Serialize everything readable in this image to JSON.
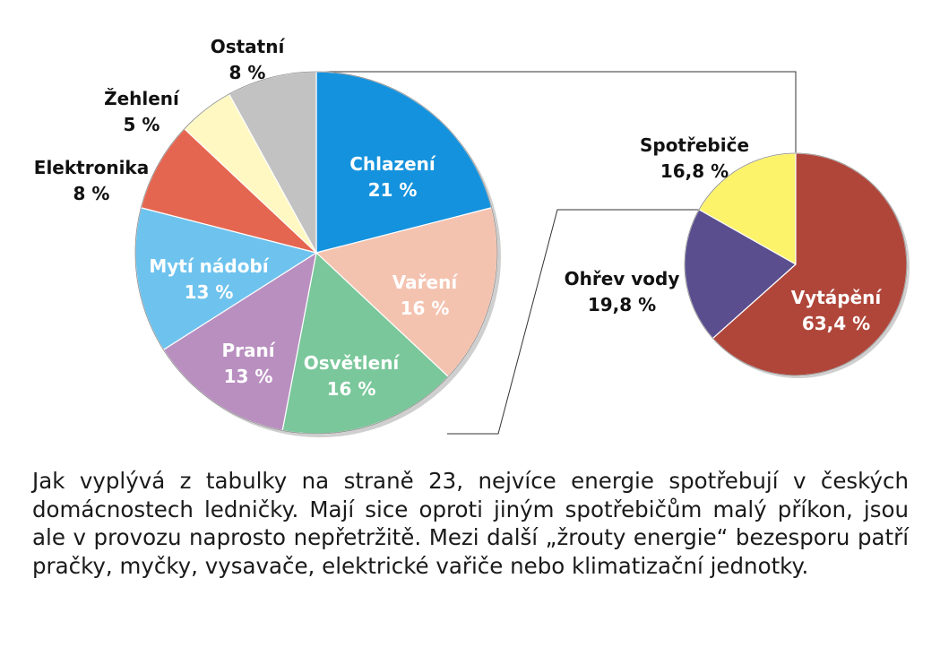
{
  "chart_data": [
    {
      "type": "pie",
      "slices": [
        {
          "label": "Chlazení",
          "value": 21,
          "value_label": "21 %",
          "color": "#1592dd",
          "label_inside": true
        },
        {
          "label": "Vaření",
          "value": 16,
          "value_label": "16 %",
          "color": "#f4c3b0",
          "label_inside": true
        },
        {
          "label": "Osvětlení",
          "value": 16,
          "value_label": "16 %",
          "color": "#79c79a",
          "label_inside": true
        },
        {
          "label": "Praní",
          "value": 13,
          "value_label": "13 %",
          "color": "#b98fc0",
          "label_inside": true
        },
        {
          "label": "Mytí nádobí",
          "value": 13,
          "value_label": "13 %",
          "color": "#6ec3ee",
          "label_inside": true
        },
        {
          "label": "Elektronika",
          "value": 8,
          "value_label": "8 %",
          "color": "#e56650",
          "label_inside": false
        },
        {
          "label": "Žehlení",
          "value": 5,
          "value_label": "5 %",
          "color": "#fff8c2",
          "label_inside": false
        },
        {
          "label": "Ostatní",
          "value": 8,
          "value_label": "8 %",
          "color": "#c2c2c2",
          "label_inside": false
        }
      ]
    },
    {
      "type": "pie",
      "exploded_from": "Chlazení",
      "slices": [
        {
          "label": "Vytápění",
          "value": 63.4,
          "value_label": "63,4 %",
          "color": "#b0463a",
          "label_inside": true
        },
        {
          "label": "Ohřev vody",
          "value": 19.8,
          "value_label": "19,8 %",
          "color": "#5a4e8f",
          "label_inside": false
        },
        {
          "label": "Spotřebiče",
          "value": 16.8,
          "value_label": "16,8 %",
          "color": "#fdf36a",
          "label_inside": false
        }
      ]
    }
  ],
  "caption": "Jak vyplývá z tabulky na straně 23, nejvíce energie spotřebují v českých domácnostech ledničky. Mají sice oproti jiným spotřebičům malý příkon, jsou ale v provozu naprosto nepřetržitě. Mezi další „žrouty energie“ bezesporu patří pračky, myčky, vysavače, elektrické vařiče nebo klimatizační jednotky."
}
